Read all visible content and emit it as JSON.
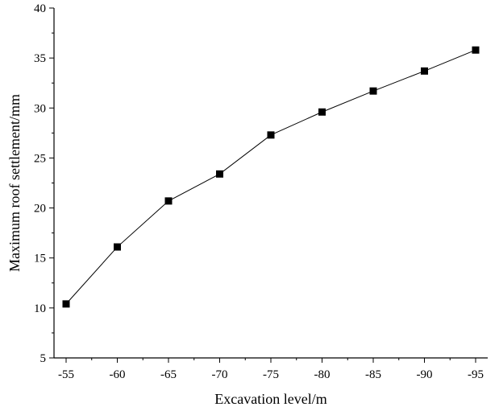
{
  "chart_data": {
    "type": "line",
    "title": "",
    "xlabel": "Excavation level/m",
    "ylabel": "Maximum roof settlement/mm",
    "x": [
      -55,
      -60,
      -65,
      -70,
      -75,
      -80,
      -85,
      -90,
      -95
    ],
    "x_tick_labels": [
      "-55",
      "-60",
      "-65",
      "-70",
      "-75",
      "-80",
      "-85",
      "-90",
      "-95"
    ],
    "xlim": [
      -55,
      -95
    ],
    "ylim": [
      5,
      40
    ],
    "y_ticks": [
      5,
      10,
      15,
      20,
      25,
      30,
      35,
      40
    ],
    "grid": false,
    "legend": "none",
    "series": [
      {
        "values": [
          10.4,
          16.1,
          20.7,
          23.4,
          27.3,
          29.6,
          31.7,
          33.7,
          35.8
        ],
        "marker": "square",
        "color": "#000000"
      }
    ]
  }
}
